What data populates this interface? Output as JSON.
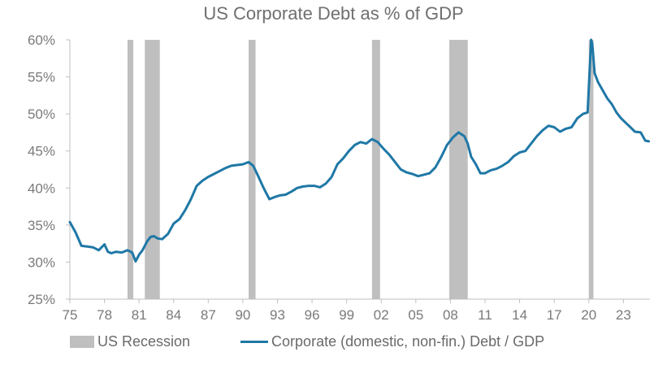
{
  "chart_data": {
    "type": "line",
    "title": "US Corporate Debt as % of GDP",
    "xlabel": "",
    "ylabel": "",
    "x_range": [
      1975,
      2025.3
    ],
    "ylim": [
      25,
      60
    ],
    "y_ticks": [
      25,
      30,
      35,
      40,
      45,
      50,
      55,
      60
    ],
    "y_tick_labels": [
      "25%",
      "30%",
      "35%",
      "40%",
      "45%",
      "50%",
      "55%",
      "60%"
    ],
    "x_ticks": [
      1975,
      1978,
      1981,
      1984,
      1987,
      1990,
      1993,
      1996,
      1999,
      2002,
      2005,
      2008,
      2011,
      2014,
      2017,
      2020,
      2023
    ],
    "x_tick_labels": [
      "75",
      "78",
      "81",
      "84",
      "87",
      "90",
      "93",
      "96",
      "99",
      "02",
      "05",
      "08",
      "11",
      "14",
      "17",
      "20",
      "23"
    ],
    "grid": false,
    "legend_position": "bottom",
    "recessions": [
      {
        "start": 1980.0,
        "end": 1980.5
      },
      {
        "start": 1981.5,
        "end": 1982.8
      },
      {
        "start": 1990.5,
        "end": 1991.1
      },
      {
        "start": 2001.2,
        "end": 2001.9
      },
      {
        "start": 2007.9,
        "end": 2009.5
      },
      {
        "start": 2020.0,
        "end": 2020.4
      }
    ],
    "recession_color": "#bfbfbf",
    "series": [
      {
        "name": "Corporate (domestic, non-fin.) Debt / GDP",
        "color": "#1f78a6",
        "x": [
          1975.0,
          1975.5,
          1976.0,
          1976.5,
          1977.0,
          1977.5,
          1978.0,
          1978.3,
          1978.6,
          1979.0,
          1979.5,
          1980.0,
          1980.4,
          1980.7,
          1981.0,
          1981.3,
          1981.7,
          1982.0,
          1982.3,
          1982.6,
          1983.0,
          1983.5,
          1984.0,
          1984.5,
          1985.0,
          1985.5,
          1986.0,
          1986.5,
          1987.0,
          1987.5,
          1988.0,
          1988.5,
          1989.0,
          1989.5,
          1990.0,
          1990.5,
          1990.9,
          1991.3,
          1991.8,
          1992.3,
          1992.8,
          1993.2,
          1993.7,
          1994.2,
          1994.7,
          1995.2,
          1995.7,
          1996.2,
          1996.7,
          1997.2,
          1997.7,
          1998.2,
          1998.7,
          1999.2,
          1999.7,
          2000.2,
          2000.7,
          2001.2,
          2001.7,
          2002.2,
          2002.7,
          2003.2,
          2003.7,
          2004.2,
          2004.7,
          2005.2,
          2005.7,
          2006.2,
          2006.7,
          2007.2,
          2007.7,
          2008.2,
          2008.7,
          2009.2,
          2009.5,
          2009.8,
          2010.2,
          2010.6,
          2011.0,
          2011.5,
          2012.0,
          2012.5,
          2013.0,
          2013.5,
          2014.0,
          2014.5,
          2015.0,
          2015.5,
          2016.0,
          2016.5,
          2017.0,
          2017.5,
          2018.0,
          2018.5,
          2019.0,
          2019.5,
          2019.9,
          2020.2,
          2020.3,
          2020.5,
          2020.8,
          2021.2,
          2021.6,
          2022.0,
          2022.4,
          2022.8,
          2023.2,
          2023.6,
          2024.0,
          2024.5,
          2024.9,
          2025.2
        ],
        "y": [
          35.4,
          34.0,
          32.2,
          32.1,
          32.0,
          31.6,
          32.4,
          31.4,
          31.2,
          31.4,
          31.3,
          31.6,
          31.3,
          30.1,
          31.0,
          31.6,
          32.8,
          33.4,
          33.5,
          33.2,
          33.1,
          33.8,
          35.2,
          35.8,
          37.0,
          38.5,
          40.3,
          41.0,
          41.5,
          41.9,
          42.3,
          42.7,
          43.0,
          43.1,
          43.2,
          43.5,
          43.0,
          41.7,
          40.0,
          38.5,
          38.8,
          39.0,
          39.1,
          39.5,
          40.0,
          40.2,
          40.3,
          40.3,
          40.1,
          40.6,
          41.5,
          43.2,
          44.0,
          45.0,
          45.8,
          46.2,
          46.0,
          46.6,
          46.2,
          45.3,
          44.5,
          43.5,
          42.5,
          42.1,
          41.9,
          41.6,
          41.8,
          42.0,
          42.8,
          44.2,
          45.8,
          46.8,
          47.5,
          47.0,
          46.0,
          44.2,
          43.2,
          42.0,
          42.0,
          42.4,
          42.6,
          43.0,
          43.5,
          44.3,
          44.8,
          45.0,
          46.0,
          47.0,
          47.8,
          48.4,
          48.2,
          47.6,
          48.0,
          48.2,
          49.4,
          50.0,
          50.2,
          60.0,
          59.5,
          55.5,
          54.3,
          53.2,
          52.1,
          51.3,
          50.2,
          49.4,
          48.8,
          48.2,
          47.6,
          47.5,
          46.4,
          46.3
        ]
      }
    ]
  },
  "legend": {
    "recession_label": "US Recession",
    "series_label": "Corporate (domestic, non-fin.) Debt / GDP"
  }
}
